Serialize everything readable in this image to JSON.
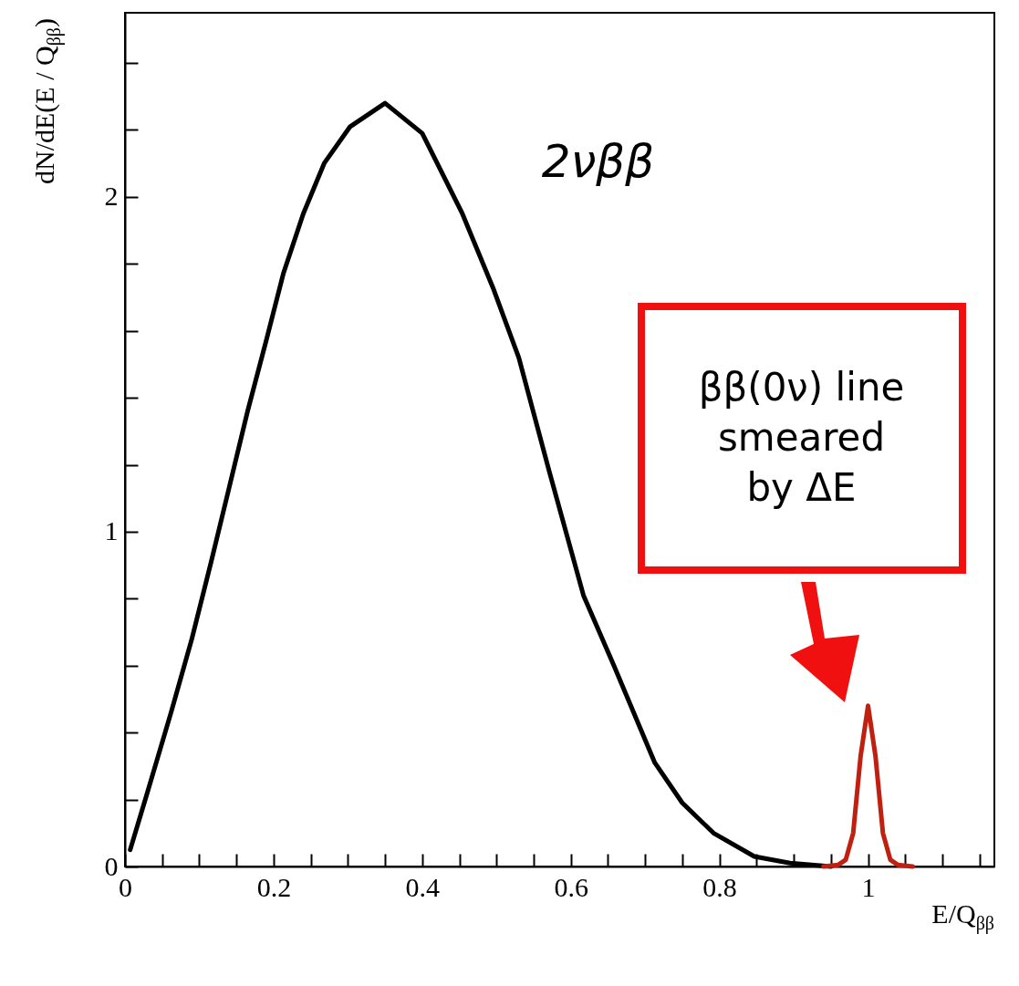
{
  "chart_data": {
    "type": "line",
    "xlabel": "E/Q$_{ββ}$",
    "ylabel": "dN/dE(E / Q$_{ββ}$)",
    "xlim": [
      0,
      1.17
    ],
    "ylim": [
      0,
      2.55
    ],
    "xticks": [
      0,
      {
        "value": 0.05,
        "label": null
      },
      {
        "value": 0.1,
        "label": null
      },
      {
        "value": 0.15,
        "label": null
      },
      0.2,
      {
        "value": 0.25,
        "label": null
      },
      {
        "value": 0.3,
        "label": null
      },
      {
        "value": 0.35,
        "label": null
      },
      0.4,
      {
        "value": 0.45,
        "label": null
      },
      {
        "value": 0.5,
        "label": null
      },
      {
        "value": 0.55,
        "label": null
      },
      0.6,
      {
        "value": 0.65,
        "label": null
      },
      {
        "value": 0.7,
        "label": null
      },
      {
        "value": 0.75,
        "label": null
      },
      0.8,
      {
        "value": 0.85,
        "label": null
      },
      {
        "value": 0.9,
        "label": null
      },
      {
        "value": 0.95,
        "label": null
      },
      1,
      {
        "value": 1.05,
        "label": null
      },
      {
        "value": 1.1,
        "label": null
      },
      {
        "value": 1.15,
        "label": null
      }
    ],
    "yticks": [
      0,
      {
        "value": 0.2,
        "label": null
      },
      {
        "value": 0.4,
        "label": null
      },
      {
        "value": 0.6,
        "label": null
      },
      {
        "value": 0.8,
        "label": null
      },
      1,
      {
        "value": 1.2,
        "label": null
      },
      {
        "value": 1.4,
        "label": null
      },
      {
        "value": 1.6,
        "label": null
      },
      {
        "value": 1.8,
        "label": null
      },
      2,
      {
        "value": 2.2,
        "label": null
      },
      {
        "value": 2.4,
        "label": null
      }
    ],
    "grid": false,
    "marker": "none",
    "line_style": "solid",
    "series": [
      {
        "name": "2νββ",
        "color": "#000000",
        "x": [
          0.007,
          0.03,
          0.062,
          0.09,
          0.116,
          0.14,
          0.165,
          0.19,
          0.213,
          0.24,
          0.268,
          0.303,
          0.35,
          0.4,
          0.454,
          0.495,
          0.53,
          0.571,
          0.617,
          0.658,
          0.713,
          0.75,
          0.792,
          0.847,
          0.895,
          0.95
        ],
        "values": [
          0.05,
          0.22,
          0.46,
          0.68,
          0.91,
          1.13,
          1.36,
          1.57,
          1.77,
          1.95,
          2.1,
          2.21,
          2.28,
          2.19,
          1.95,
          1.73,
          1.52,
          1.18,
          0.81,
          0.6,
          0.31,
          0.19,
          0.1,
          0.03,
          0.01,
          0
        ]
      },
      {
        "color": "#c0200f",
        "x": [
          0.94,
          0.96,
          0.97,
          0.98,
          0.99,
          1.0,
          1.01,
          1.02,
          1.03,
          1.04,
          1.06
        ],
        "values": [
          0,
          0.005,
          0.02,
          0.1,
          0.33,
          0.48,
          0.33,
          0.1,
          0.02,
          0.005,
          0
        ]
      }
    ],
    "annotations": [
      "ββ(0ν) line\nsmeared\nby ΔE"
    ]
  }
}
